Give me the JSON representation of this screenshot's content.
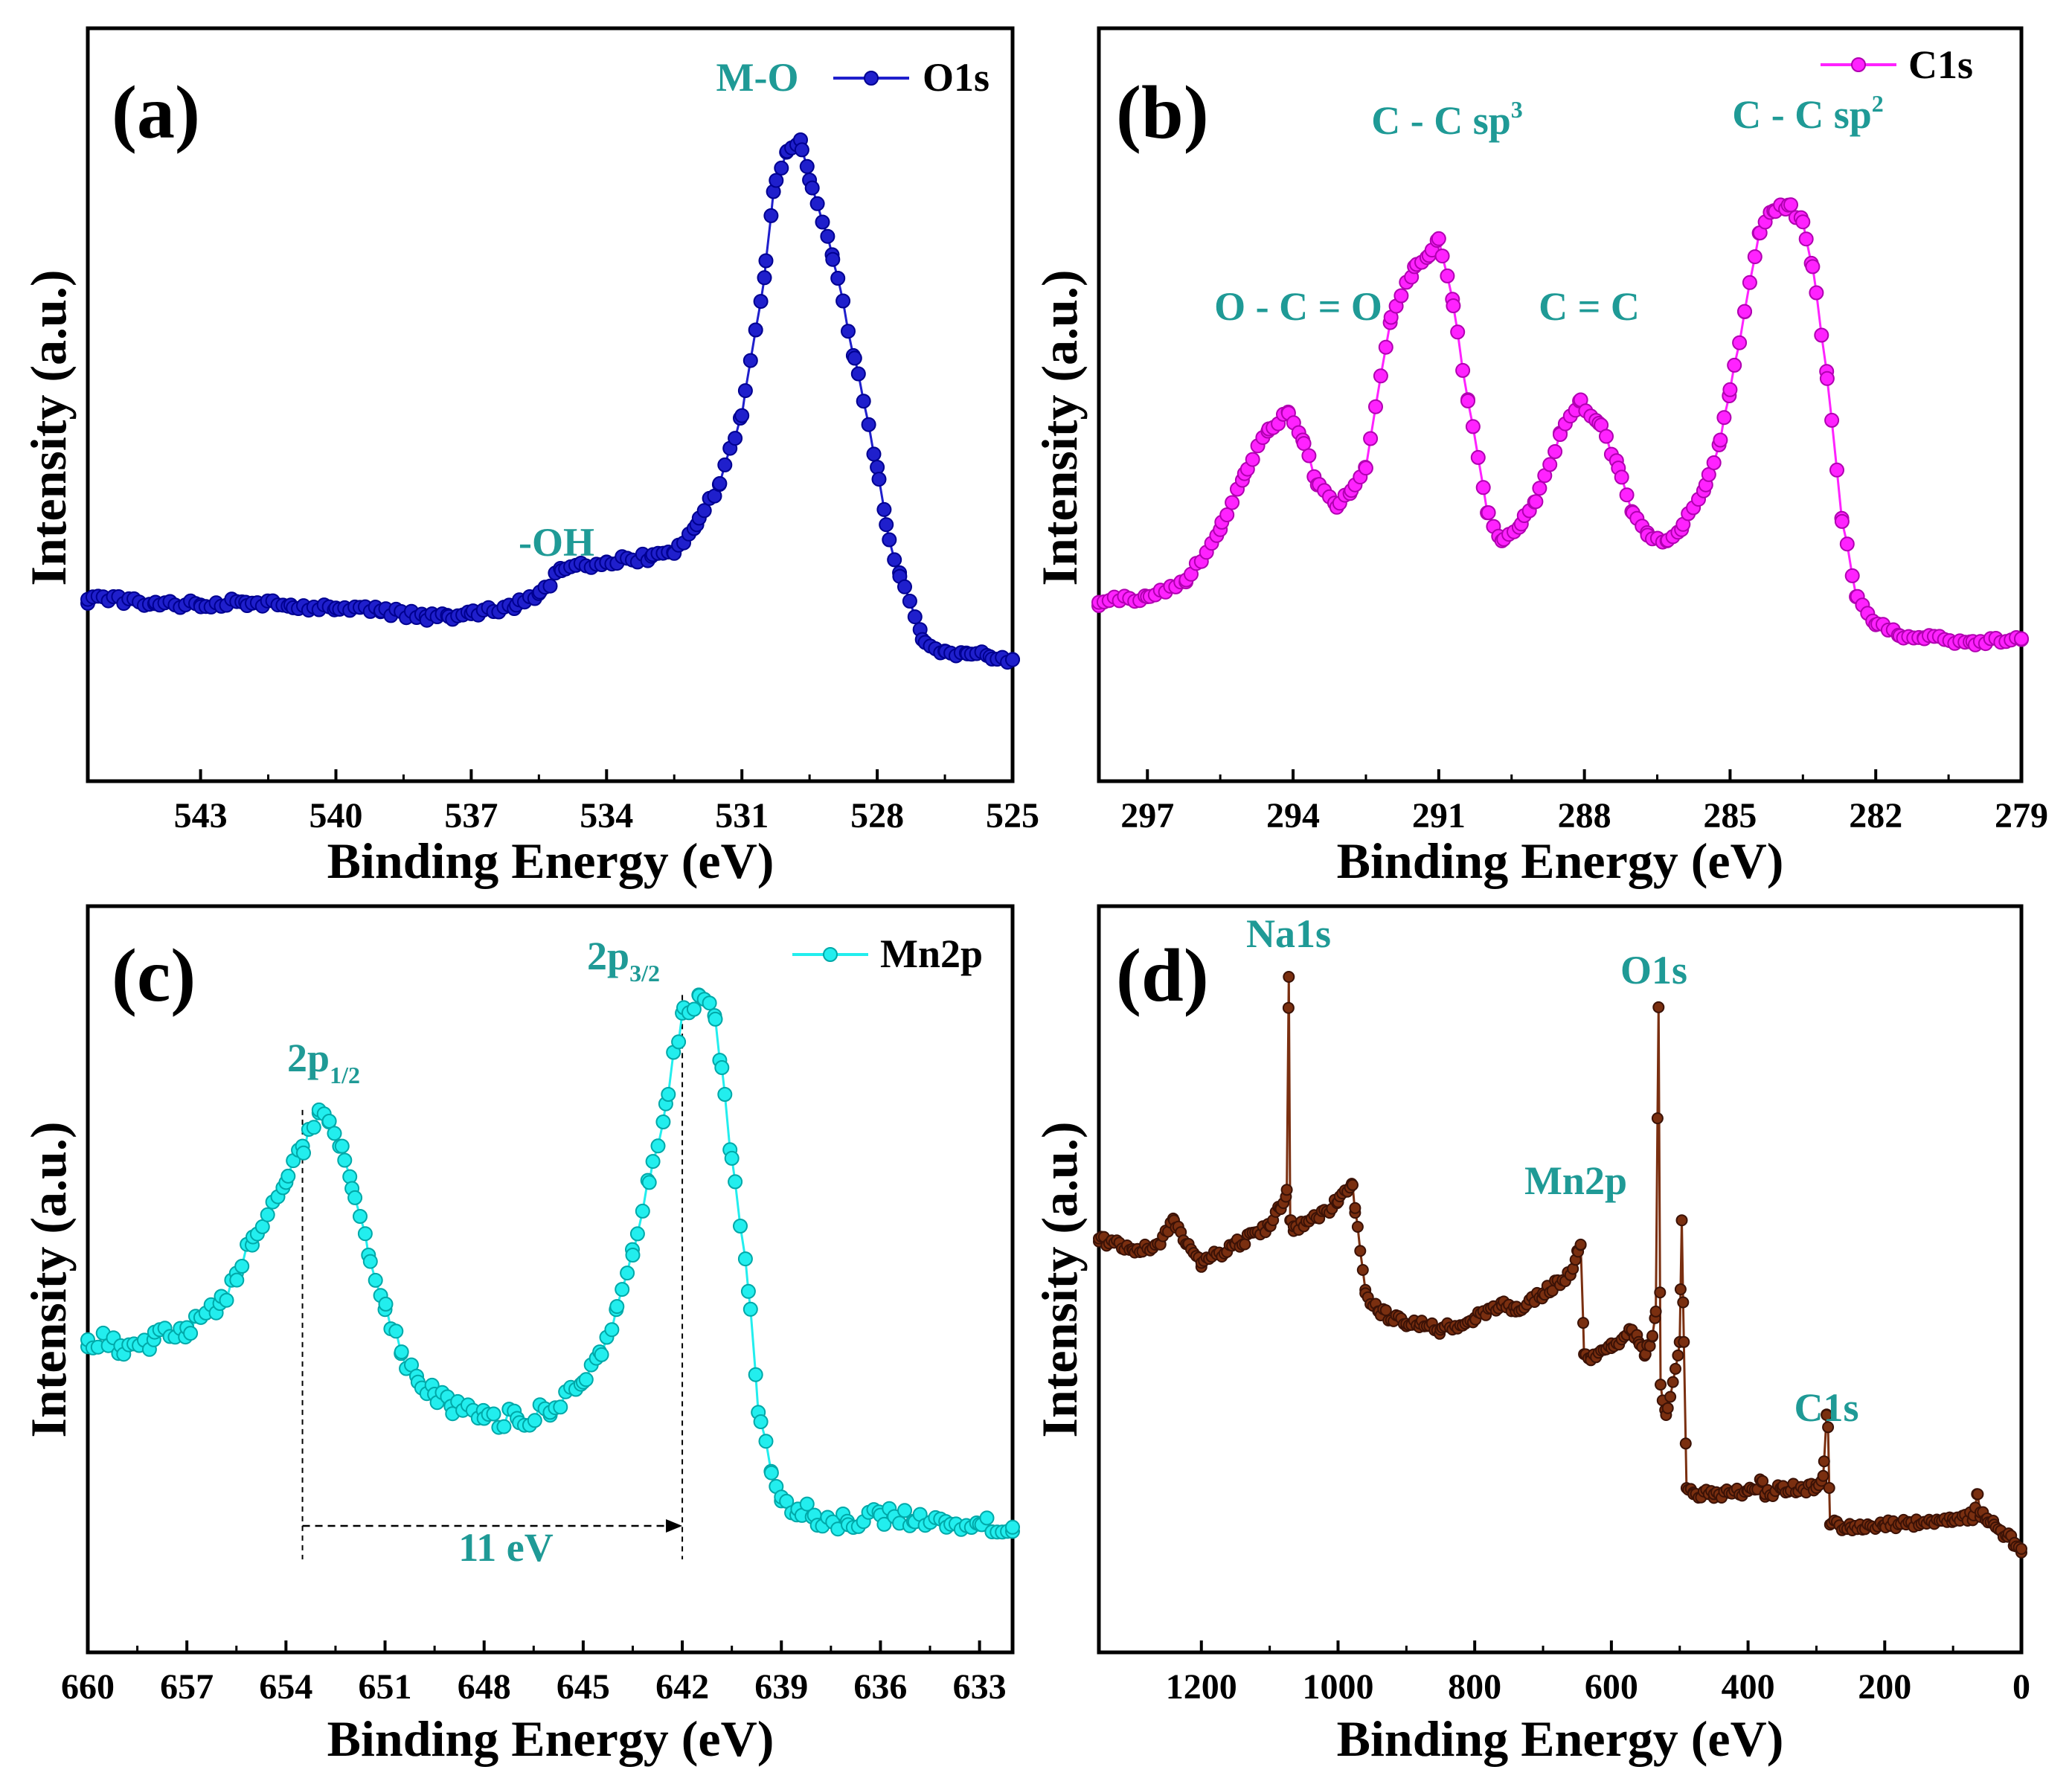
{
  "figure": {
    "accent_colors": {
      "annotation": "#1f9a96",
      "o1s": "#1f1fcc",
      "c1s": "#ff22ff",
      "mn2p": "#22eeee",
      "survey": "#7a2f10",
      "axis": "#000000"
    }
  },
  "chart_data": [
    {
      "panel_id": "a",
      "panel_label": "(a)",
      "type": "scatter",
      "mode": "line+markers",
      "xlabel": "Binding Energy (eV)",
      "ylabel": "Intensity (a.u.)",
      "xlim": [
        545.5,
        525
      ],
      "ylim": [
        0,
        100
      ],
      "xticks": [
        "543",
        "540",
        "537",
        "534",
        "531",
        "528",
        "525"
      ],
      "xtick_values": [
        543,
        540,
        537,
        534,
        531,
        528,
        525
      ],
      "legend": "O1s",
      "color": "#1f1fcc",
      "series": {
        "x": [
          545.5,
          544,
          543,
          542,
          541,
          540,
          539,
          538,
          537.5,
          537,
          536,
          535.5,
          535,
          534,
          533,
          532.5,
          532,
          531.5,
          531,
          530.5,
          530.3,
          530,
          529.7,
          529.5,
          529,
          528.5,
          528,
          527.8,
          527.5,
          527,
          526.5,
          526,
          525.5,
          525
        ],
        "y": [
          20,
          19.5,
          19,
          19.5,
          19,
          18.5,
          18,
          17,
          17,
          17.5,
          19,
          21,
          25,
          26.5,
          27.5,
          28,
          33,
          40,
          52,
          76,
          91,
          98,
          100,
          93,
          80,
          62,
          43,
          33,
          24,
          13,
          11,
          10.5,
          10,
          9.5
        ]
      },
      "annotations": [
        {
          "text": "M-O",
          "x": 530.0,
          "y": 100
        },
        {
          "text": "-OH",
          "x": 534.0,
          "y": 27
        }
      ]
    },
    {
      "panel_id": "b",
      "panel_label": "(b)",
      "type": "scatter",
      "mode": "line+markers",
      "xlabel": "Binding Energy (eV)",
      "ylabel": "Intensity (a.u.)",
      "xlim": [
        298,
        279
      ],
      "ylim": [
        0,
        100
      ],
      "xticks": [
        "297",
        "294",
        "291",
        "288",
        "285",
        "282",
        "279"
      ],
      "xtick_values": [
        297,
        294,
        291,
        288,
        285,
        282,
        279
      ],
      "legend": "C1s",
      "color": "#ff22ff",
      "series": {
        "x": [
          298,
          297,
          296.2,
          295.5,
          295,
          294.5,
          294.1,
          293.8,
          293.5,
          293.1,
          292.8,
          292.5,
          292,
          291.5,
          291.2,
          291,
          290.7,
          290.4,
          290,
          289.7,
          289.3,
          289,
          288.5,
          288.1,
          287.7,
          287.3,
          287,
          286.7,
          286.3,
          286.0,
          285.5,
          285.2,
          285,
          284.7,
          284.4,
          284.1,
          283.8,
          283.5,
          283.3,
          283,
          282.7,
          282.4,
          282,
          281.5,
          281,
          280,
          279
        ],
        "y": [
          20,
          21,
          24,
          33,
          43,
          51,
          54,
          49,
          41,
          37,
          40,
          44,
          70,
          80,
          82,
          85,
          73,
          56,
          36,
          31,
          34,
          38,
          50,
          56,
          52,
          44,
          36,
          32,
          31,
          33,
          41,
          49,
          58,
          72,
          86,
          90,
          91,
          88,
          80,
          60,
          35,
          21,
          16,
          14,
          13.5,
          13,
          13.5
        ]
      },
      "annotations": [
        {
          "text": "O - C = O",
          "x": 294.0,
          "y": 56
        },
        {
          "text": "C - C sp",
          "sup": "3",
          "x": 291.0,
          "y": 86
        },
        {
          "text": "C = C",
          "x": 288.0,
          "y": 57
        },
        {
          "text": "C - C sp",
          "sup": "2",
          "x": 284.0,
          "y": 92
        }
      ]
    },
    {
      "panel_id": "c",
      "panel_label": "(c)",
      "type": "scatter",
      "mode": "line+markers",
      "xlabel": "Binding Energy (eV)",
      "ylabel": "Intensity (a.u.)",
      "xlim": [
        660,
        632
      ],
      "ylim": [
        0,
        100
      ],
      "xticks": [
        "660",
        "657",
        "654",
        "651",
        "648",
        "645",
        "642",
        "639",
        "636",
        "633"
      ],
      "xtick_values": [
        660,
        657,
        654,
        651,
        648,
        645,
        642,
        639,
        636,
        633
      ],
      "legend": "Mn2p",
      "color": "#22eeee",
      "series": {
        "x": [
          660,
          659,
          658,
          657,
          656,
          655.5,
          655,
          654,
          653.5,
          653,
          652.7,
          652.3,
          652,
          651.5,
          651,
          650.5,
          650,
          649.5,
          649,
          648,
          647,
          646,
          645,
          644.5,
          644,
          643.5,
          643,
          642.5,
          642,
          641.5,
          641,
          640.8,
          640.5,
          640,
          639.7,
          639.3,
          639,
          638.5,
          638,
          637,
          636,
          635,
          634,
          633,
          632
        ],
        "y": [
          40,
          39,
          40,
          42,
          46,
          51,
          57,
          66,
          72,
          78,
          76,
          72,
          65,
          54,
          45,
          38,
          33,
          31,
          29,
          27,
          27,
          28,
          33,
          38,
          45,
          54,
          66,
          79,
          94,
          97,
          93,
          85,
          70,
          48,
          28,
          18,
          14,
          12,
          11,
          10,
          11,
          10,
          9,
          9.5,
          9
        ]
      },
      "annotations": [
        {
          "text": "2p",
          "sub": "1/2",
          "x": 653.5,
          "y": 78
        },
        {
          "text": "2p",
          "sub": "3/2",
          "x": 642.0,
          "y": 97
        },
        {
          "text": "11 eV",
          "x": 647.8,
          "y": 15
        }
      ],
      "dashed_markers": [
        653.5,
        642.0
      ]
    },
    {
      "panel_id": "d",
      "panel_label": "(d)",
      "type": "scatter",
      "mode": "line+markers",
      "xlabel": "Binding Energy (eV)",
      "ylabel": "Intensity (a.u.)",
      "xlim": [
        1350,
        0
      ],
      "ylim": [
        0,
        100
      ],
      "xticks": [
        "1200",
        "1000",
        "800",
        "600",
        "400",
        "200",
        "0"
      ],
      "xtick_values": [
        1200,
        1000,
        800,
        600,
        400,
        200,
        0
      ],
      "legend": "",
      "color": "#7a2f10",
      "series": {
        "x": [
          1350,
          1300,
          1260,
          1240,
          1220,
          1200,
          1150,
          1100,
          1085,
          1075,
          1072,
          1070,
          1065,
          1050,
          1000,
          980,
          975,
          960,
          940,
          900,
          880,
          850,
          800,
          760,
          740,
          700,
          660,
          650,
          645,
          640,
          630,
          600,
          570,
          560,
          550,
          540,
          535,
          531,
          528,
          520,
          500,
          497,
          494,
          490,
          480,
          450,
          400,
          380,
          375,
          350,
          300,
          290,
          285,
          283,
          280,
          250,
          200,
          100,
          70,
          65,
          60,
          50,
          40,
          30,
          20,
          10,
          0
        ],
        "y": [
          57,
          55,
          56,
          60,
          56,
          53,
          56,
          59,
          62,
          65,
          100,
          60,
          59,
          59,
          63,
          66,
          62,
          48,
          45,
          43,
          43,
          42,
          44,
          46,
          45,
          48,
          51,
          55,
          56,
          38,
          37,
          39,
          42,
          40,
          38,
          41,
          45,
          95,
          33,
          28,
          40,
          60,
          40,
          16,
          15,
          15,
          15.5,
          17,
          15,
          16,
          16,
          18,
          28,
          26,
          10,
          9.5,
          10,
          11,
          11.5,
          15,
          12,
          11,
          10,
          9,
          8,
          7,
          6
        ]
      },
      "annotations": [
        {
          "text": "Na1s",
          "x": 1072,
          "y": 100
        },
        {
          "text": "O1s",
          "x": 531,
          "y": 95
        },
        {
          "text": "Mn2p",
          "x": 650,
          "y": 57
        },
        {
          "text": "C1s",
          "x": 284,
          "y": 28
        }
      ]
    }
  ]
}
